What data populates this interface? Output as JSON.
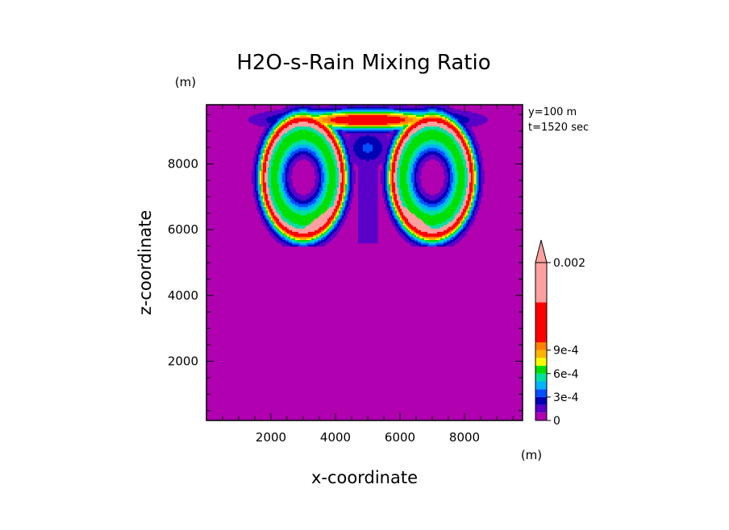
{
  "chart_data": {
    "type": "heatmap",
    "title": "H2O-s-Rain Mixing Ratio",
    "xlabel": "x-coordinate",
    "ylabel": "z-coordinate",
    "x_unit": "(m)",
    "y_unit": "(m)",
    "annotations": [
      "y=100 m",
      "t=1520 sec"
    ],
    "xlim": [
      0,
      9800
    ],
    "ylim": [
      200,
      9800
    ],
    "x_ticks": [
      2000,
      4000,
      6000,
      8000
    ],
    "y_ticks": [
      2000,
      4000,
      6000,
      8000
    ],
    "x_tick_labels": [
      "2000",
      "4000",
      "6000",
      "8000"
    ],
    "y_tick_labels": [
      "2000",
      "4000",
      "6000",
      "8000"
    ],
    "grid": false,
    "colorbar": {
      "position": "right",
      "extend": "max",
      "levels": [
        0,
        0.0001,
        0.0002,
        0.0003,
        0.0004,
        0.0005,
        0.0006,
        0.0007,
        0.0008,
        0.0009,
        0.001,
        0.0015,
        0.002
      ],
      "colors": [
        "#b000b0",
        "#5a00c8",
        "#0000b4",
        "#0050ff",
        "#00b4ff",
        "#00e0a0",
        "#00e000",
        "#ffff00",
        "#ffb400",
        "#ff8000",
        "#ff0000",
        "#ffa0a0",
        "#ffa0a0"
      ],
      "tick_values": [
        0,
        0.0003,
        0.0006,
        0.0009,
        0.002
      ],
      "tick_labels": [
        "0",
        "3e-4",
        "6e-4",
        "9e-4",
        "0.002"
      ]
    },
    "field_description": {
      "background_value": 0,
      "features": [
        {
          "kind": "ring",
          "center_x": 3000,
          "center_z": 7600,
          "max_value": 0.002
        },
        {
          "kind": "ring",
          "center_x": 7000,
          "center_z": 7600,
          "max_value": 0.002
        },
        {
          "kind": "cap",
          "center_x": 5000,
          "center_z": 9300,
          "max_value": 0.0015
        },
        {
          "kind": "stem",
          "center_x": 5000,
          "z_range": [
            5600,
            8000
          ],
          "max_value": 0.0001
        }
      ]
    }
  }
}
